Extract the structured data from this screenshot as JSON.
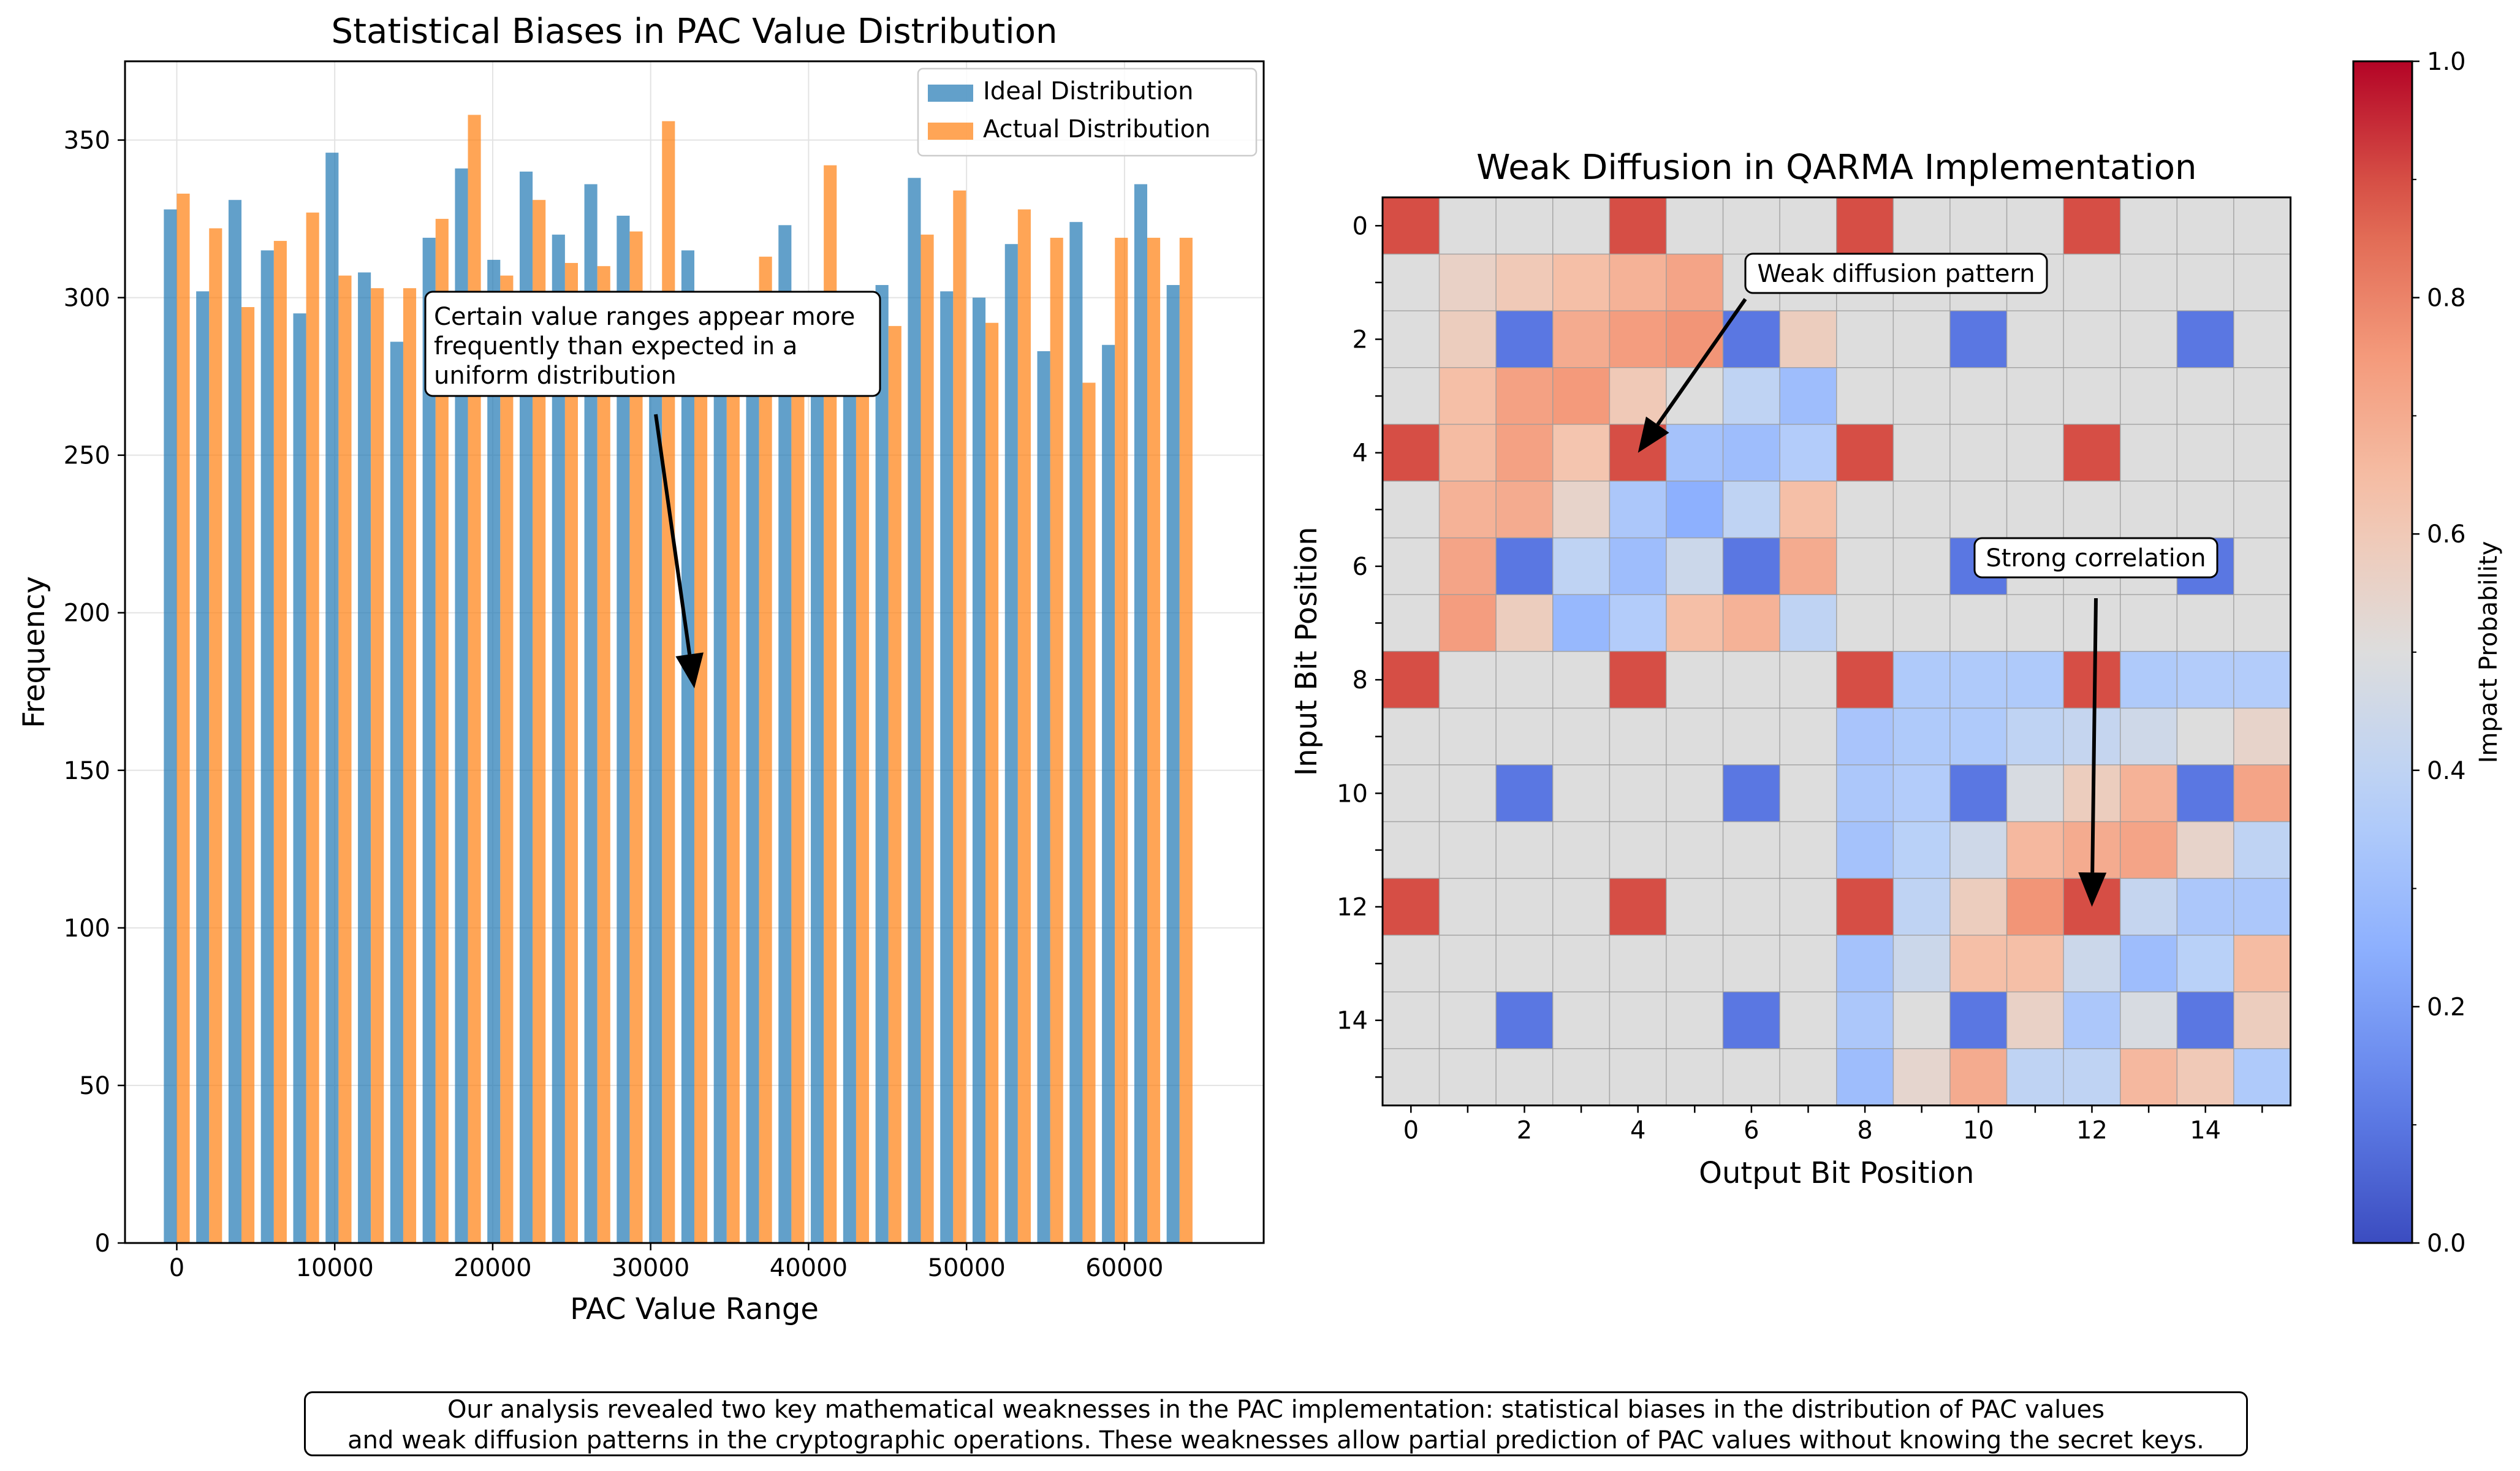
{
  "chart_data": [
    {
      "type": "bar",
      "title": "Statistical Biases in PAC Value Distribution",
      "xlabel": "PAC Value Range",
      "ylabel": "Frequency",
      "xlim": [
        -3277,
        68812
      ],
      "ylim": [
        0,
        375
      ],
      "xticks": [
        0,
        10000,
        20000,
        30000,
        40000,
        50000,
        60000
      ],
      "yticks": [
        0,
        50,
        100,
        150,
        200,
        250,
        300,
        350
      ],
      "grid": true,
      "legend_position": "top-right",
      "x": [
        0,
        2048,
        4096,
        6144,
        8192,
        10240,
        12288,
        14336,
        16384,
        18432,
        20480,
        22528,
        24576,
        26624,
        28672,
        30720,
        32768,
        34816,
        36864,
        38912,
        40960,
        43008,
        45056,
        47104,
        49152,
        51200,
        53248,
        55296,
        57344,
        59392,
        61440,
        63488
      ],
      "series": [
        {
          "name": "Ideal Distribution",
          "color": "#1f77b4",
          "values": [
            328,
            302,
            331,
            315,
            295,
            346,
            308,
            286,
            319,
            341,
            312,
            340,
            320,
            336,
            326,
            298,
            315,
            300,
            285,
            323,
            300,
            302,
            304,
            338,
            302,
            300,
            317,
            283,
            324,
            285,
            336,
            304
          ]
        },
        {
          "name": "Actual Distribution",
          "color": "#ff7f0e",
          "values": [
            333,
            322,
            297,
            318,
            327,
            307,
            303,
            303,
            325,
            358,
            307,
            331,
            311,
            310,
            321,
            356,
            296,
            300,
            313,
            299,
            342,
            275,
            291,
            320,
            334,
            292,
            328,
            319,
            273,
            319,
            319,
            319
          ]
        }
      ],
      "annotation": {
        "text_lines": [
          "Certain value ranges appear more",
          "frequently than expected in a",
          "uniform distribution"
        ],
        "arrow_target": [
          32768,
          176
        ]
      }
    },
    {
      "type": "heatmap",
      "title": "Weak Diffusion in QARMA Implementation",
      "xlabel": "Output Bit Position",
      "ylabel": "Input Bit Position",
      "xticks": [
        0,
        2,
        4,
        6,
        8,
        10,
        12,
        14
      ],
      "yticks": [
        0,
        2,
        4,
        6,
        8,
        10,
        12,
        14
      ],
      "colormap": "coolwarm",
      "colorbar": {
        "label": "Impact Probability",
        "range": [
          0,
          1
        ],
        "ticks": [
          "0.0",
          "0.2",
          "0.4",
          "0.6",
          "0.8",
          "1.0"
        ]
      },
      "values": [
        [
          0.9,
          0.5,
          0.5,
          0.5,
          0.9,
          0.5,
          0.5,
          0.5,
          0.9,
          0.5,
          0.5,
          0.5,
          0.9,
          0.5,
          0.5,
          0.5
        ],
        [
          0.5,
          0.56,
          0.6,
          0.64,
          0.68,
          0.72,
          0.5,
          0.5,
          0.5,
          0.5,
          0.5,
          0.5,
          0.5,
          0.5,
          0.5,
          0.5
        ],
        [
          0.5,
          0.58,
          0.1,
          0.7,
          0.74,
          0.76,
          0.1,
          0.58,
          0.5,
          0.5,
          0.1,
          0.5,
          0.5,
          0.5,
          0.1,
          0.5
        ],
        [
          0.5,
          0.64,
          0.73,
          0.75,
          0.6,
          0.5,
          0.4,
          0.3,
          0.5,
          0.5,
          0.5,
          0.5,
          0.5,
          0.5,
          0.5,
          0.5
        ],
        [
          0.9,
          0.65,
          0.73,
          0.62,
          0.9,
          0.32,
          0.3,
          0.36,
          0.9,
          0.5,
          0.5,
          0.5,
          0.9,
          0.5,
          0.5,
          0.5
        ],
        [
          0.5,
          0.68,
          0.7,
          0.55,
          0.34,
          0.25,
          0.4,
          0.64,
          0.5,
          0.5,
          0.5,
          0.5,
          0.5,
          0.5,
          0.5,
          0.5
        ],
        [
          0.5,
          0.72,
          0.1,
          0.4,
          0.3,
          0.44,
          0.1,
          0.7,
          0.5,
          0.5,
          0.1,
          0.5,
          0.5,
          0.5,
          0.1,
          0.5
        ],
        [
          0.5,
          0.74,
          0.58,
          0.28,
          0.36,
          0.64,
          0.68,
          0.4,
          0.5,
          0.5,
          0.5,
          0.5,
          0.5,
          0.5,
          0.5,
          0.5
        ],
        [
          0.9,
          0.5,
          0.5,
          0.5,
          0.9,
          0.5,
          0.5,
          0.5,
          0.9,
          0.35,
          0.35,
          0.35,
          0.9,
          0.35,
          0.36,
          0.36
        ],
        [
          0.5,
          0.5,
          0.5,
          0.5,
          0.5,
          0.5,
          0.5,
          0.5,
          0.33,
          0.35,
          0.35,
          0.4,
          0.42,
          0.45,
          0.5,
          0.55
        ],
        [
          0.5,
          0.5,
          0.1,
          0.5,
          0.5,
          0.5,
          0.1,
          0.5,
          0.34,
          0.36,
          0.1,
          0.48,
          0.58,
          0.68,
          0.1,
          0.72
        ],
        [
          0.5,
          0.5,
          0.5,
          0.5,
          0.5,
          0.5,
          0.5,
          0.5,
          0.32,
          0.38,
          0.45,
          0.66,
          0.7,
          0.72,
          0.55,
          0.4
        ],
        [
          0.9,
          0.5,
          0.5,
          0.5,
          0.9,
          0.5,
          0.5,
          0.5,
          0.9,
          0.4,
          0.58,
          0.76,
          0.9,
          0.42,
          0.34,
          0.34
        ],
        [
          0.5,
          0.5,
          0.5,
          0.5,
          0.5,
          0.5,
          0.5,
          0.5,
          0.32,
          0.44,
          0.64,
          0.64,
          0.44,
          0.3,
          0.38,
          0.65
        ],
        [
          0.5,
          0.5,
          0.1,
          0.5,
          0.5,
          0.5,
          0.1,
          0.5,
          0.34,
          0.5,
          0.1,
          0.56,
          0.34,
          0.48,
          0.1,
          0.58
        ],
        [
          0.5,
          0.5,
          0.5,
          0.5,
          0.5,
          0.5,
          0.5,
          0.5,
          0.3,
          0.54,
          0.7,
          0.4,
          0.4,
          0.66,
          0.6,
          0.35
        ]
      ],
      "annotations": [
        {
          "text": "Weak diffusion pattern",
          "arrow_target": [
            4,
            4
          ]
        },
        {
          "text": "Strong correlation",
          "arrow_target": [
            12,
            12
          ]
        }
      ]
    }
  ],
  "footer": {
    "line1": "Our analysis revealed two key mathematical weaknesses in the PAC implementation: statistical biases in the distribution of PAC values",
    "line2": "and weak diffusion patterns in the cryptographic operations. These weaknesses allow partial prediction of PAC values without knowing the secret keys."
  }
}
